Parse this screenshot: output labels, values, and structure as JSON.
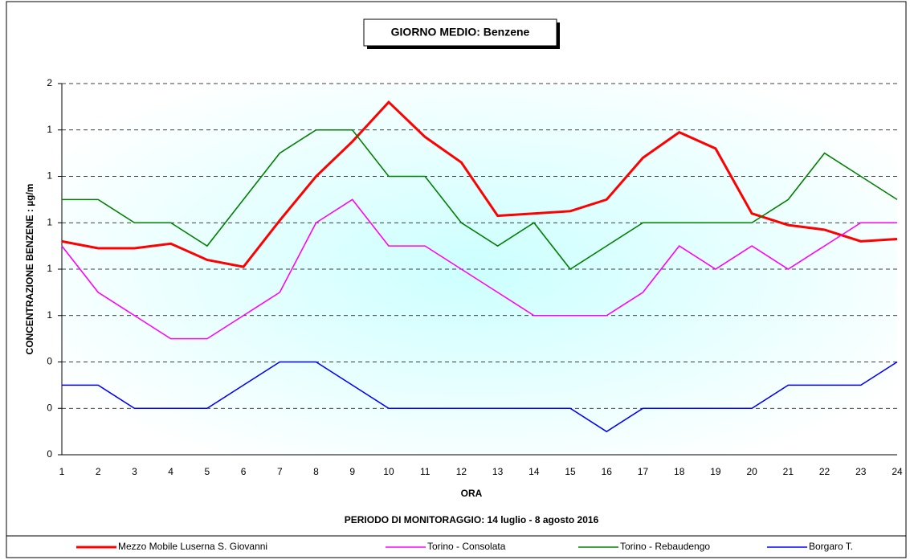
{
  "chart_data": {
    "type": "line",
    "title": "GIORNO MEDIO: Benzene",
    "x_label": "ORA",
    "y_label": "CONCENTRAZIONE  BENZENE  :  µg/m",
    "subtitle": "PERIODO DI MONITORAGGIO: 14 luglio - 8 agosto 2016",
    "categories": [
      "1",
      "2",
      "3",
      "4",
      "5",
      "6",
      "7",
      "8",
      "9",
      "10",
      "11",
      "12",
      "13",
      "14",
      "15",
      "16",
      "17",
      "18",
      "19",
      "20",
      "21",
      "22",
      "23",
      "24"
    ],
    "ylim": [
      0,
      1.6
    ],
    "yticks": [
      0,
      {
        "value": 0.2,
        "label": "0"
      },
      {
        "value": 0.4,
        "label": "0"
      },
      {
        "value": 0.6,
        "label": "1"
      },
      {
        "value": 0.8,
        "label": "1"
      },
      1,
      {
        "value": 1.2,
        "label": "1"
      },
      {
        "value": 1.4,
        "label": "1"
      },
      {
        "value": 1.6,
        "label": "2"
      }
    ],
    "grid": true,
    "legend": "bottom",
    "series": [
      {
        "name": "Mezzo Mobile Luserna S. Giovanni",
        "color": "#ff0000",
        "values": [
          0.92,
          0.89,
          0.89,
          0.91,
          0.84,
          0.81,
          1.01,
          1.2,
          1.35,
          1.52,
          1.37,
          1.26,
          1.03,
          1.04,
          1.05,
          1.1,
          1.28,
          1.39,
          1.32,
          1.04,
          0.99,
          0.97,
          0.92,
          0.93
        ]
      },
      {
        "name": "Torino - Consolata",
        "color": "#ff00ff",
        "values": [
          0.9,
          0.7,
          0.6,
          0.5,
          0.5,
          0.6,
          0.7,
          1.0,
          1.1,
          0.9,
          0.9,
          0.8,
          0.7,
          0.6,
          0.6,
          0.6,
          0.7,
          0.9,
          0.8,
          0.9,
          0.8,
          0.9,
          1.0,
          1.0
        ]
      },
      {
        "name": "Torino - Rebaudengo",
        "color": "#008000",
        "values": [
          1.1,
          1.1,
          1.0,
          1.0,
          0.9,
          1.1,
          1.3,
          1.4,
          1.4,
          1.2,
          1.2,
          1.0,
          0.9,
          1.0,
          0.8,
          0.9,
          1.0,
          1.0,
          1.0,
          1.0,
          1.1,
          1.3,
          1.2,
          1.1
        ]
      },
      {
        "name": "Borgaro T.",
        "color": "#0000ff",
        "values": [
          0.3,
          0.3,
          0.2,
          0.2,
          0.2,
          0.3,
          0.4,
          0.4,
          0.3,
          0.2,
          0.2,
          0.2,
          0.2,
          0.2,
          0.2,
          0.1,
          0.2,
          0.2,
          0.2,
          0.2,
          0.3,
          0.3,
          0.3,
          0.4
        ]
      }
    ]
  }
}
